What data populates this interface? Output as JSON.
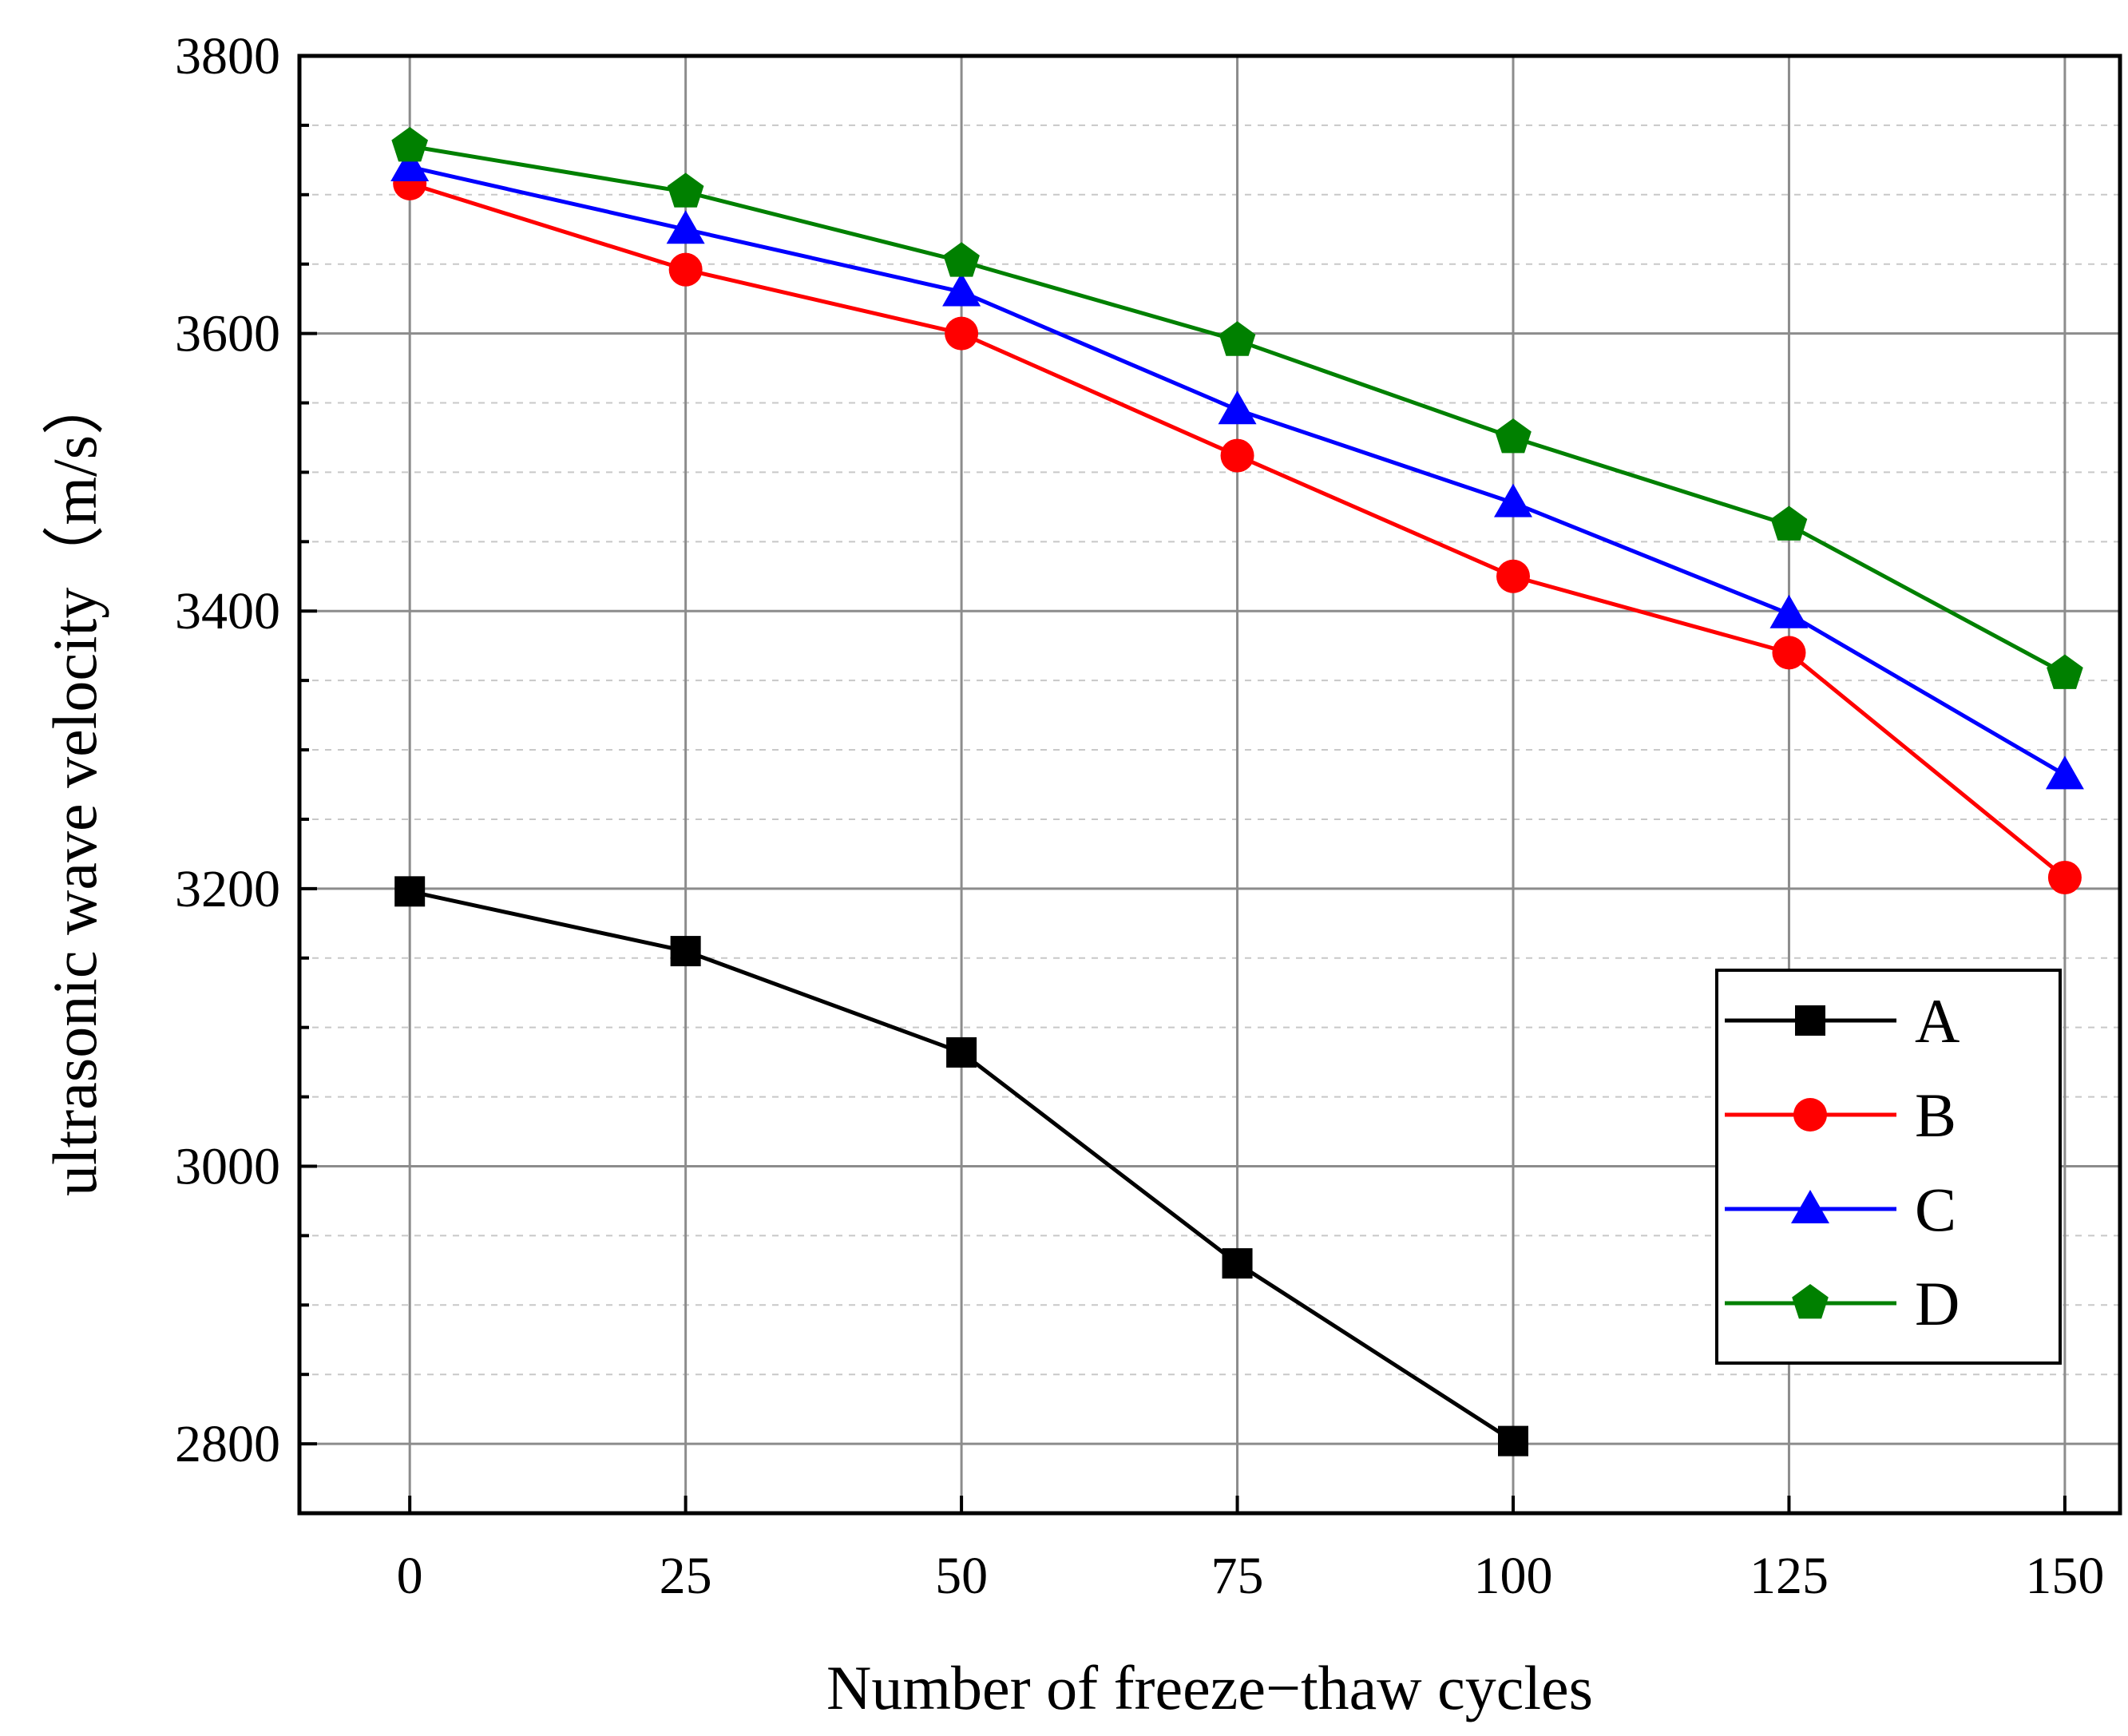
{
  "chart_data": {
    "type": "line",
    "title": "",
    "xlabel": "Number of freeze−thaw cycles",
    "ylabel": "ultrasonic wave velocity（m/s）",
    "xlim": [
      -10,
      155
    ],
    "ylim": [
      2750,
      3800
    ],
    "x_ticks": [
      0,
      25,
      50,
      75,
      100,
      125,
      150
    ],
    "x_tick_labels": [
      "0",
      "25",
      "50",
      "75",
      "100",
      "125",
      "150"
    ],
    "y_ticks": [
      2800,
      3000,
      3200,
      3400,
      3600,
      3800
    ],
    "y_tick_labels": [
      "2800",
      "3000",
      "3200",
      "3400",
      "3600",
      "3800"
    ],
    "y_minor_step": 50,
    "grid": true,
    "legend_position": "lower-right",
    "series": [
      {
        "name": "A",
        "color": "#000000",
        "marker": "square",
        "x": [
          0,
          25,
          50,
          75,
          100
        ],
        "values": [
          3198,
          3155,
          3082,
          2930,
          2802
        ]
      },
      {
        "name": "B",
        "color": "#ff0000",
        "marker": "circle",
        "x": [
          0,
          25,
          50,
          75,
          100,
          125,
          150
        ],
        "values": [
          3708,
          3646,
          3600,
          3512,
          3425,
          3370,
          3208
        ]
      },
      {
        "name": "C",
        "color": "#0000ff",
        "marker": "triangle",
        "x": [
          0,
          25,
          50,
          75,
          100,
          125,
          150
        ],
        "values": [
          3720,
          3675,
          3630,
          3545,
          3478,
          3398,
          3282
        ]
      },
      {
        "name": "D",
        "color": "#008000",
        "marker": "pentagon",
        "x": [
          0,
          25,
          50,
          75,
          100,
          125,
          150
        ],
        "values": [
          3735,
          3702,
          3652,
          3595,
          3525,
          3462,
          3355
        ]
      }
    ]
  }
}
